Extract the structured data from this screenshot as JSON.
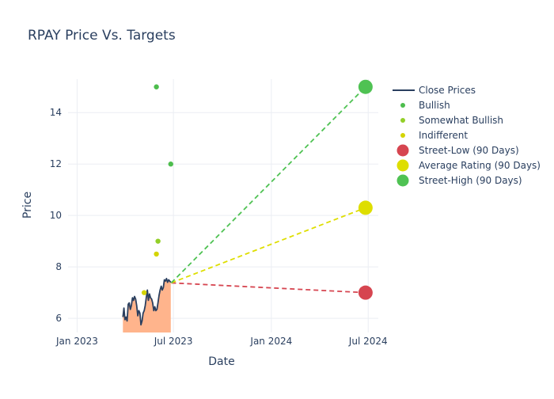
{
  "chart_data": {
    "type": "line",
    "title": "RPAY Price Vs. Targets",
    "xlabel": "Date",
    "ylabel": "Price",
    "xlim": [
      "2022-12-15",
      "2024-07-20"
    ],
    "ylim": [
      5.45,
      15.3
    ],
    "x_ticks": [
      {
        "label": "Jan 2023",
        "date": "2023-01-01"
      },
      {
        "label": "Jul 2023",
        "date": "2023-07-01"
      },
      {
        "label": "Jan 2024",
        "date": "2024-01-01"
      },
      {
        "label": "Jul 2024",
        "date": "2024-07-01"
      }
    ],
    "y_ticks": [
      6,
      8,
      10,
      12,
      14
    ],
    "grid": true,
    "legend_position": "right",
    "colors": {
      "close": "#2a3f5f",
      "fill": "#ffb48c",
      "bullish": "#4dbd4d",
      "somewhat_bullish": "#93cf28",
      "indifferent": "#d4d400",
      "street_low": "#d64550",
      "average": "#dede00",
      "street_high": "#4fc253"
    },
    "series": [
      {
        "name": "Close Prices",
        "kind": "line",
        "x": [
          "2023-03-28",
          "2023-03-30",
          "2023-04-01",
          "2023-04-03",
          "2023-04-05",
          "2023-04-07",
          "2023-04-09",
          "2023-04-11",
          "2023-04-13",
          "2023-04-15",
          "2023-04-17",
          "2023-04-19",
          "2023-04-21",
          "2023-04-23",
          "2023-04-25",
          "2023-04-27",
          "2023-04-29",
          "2023-05-01",
          "2023-05-03",
          "2023-05-05",
          "2023-05-07",
          "2023-05-09",
          "2023-05-11",
          "2023-05-13",
          "2023-05-15",
          "2023-05-17",
          "2023-05-19",
          "2023-05-21",
          "2023-05-23",
          "2023-05-25",
          "2023-05-27",
          "2023-05-29",
          "2023-05-31",
          "2023-06-02",
          "2023-06-04",
          "2023-06-06",
          "2023-06-08",
          "2023-06-10",
          "2023-06-12",
          "2023-06-14",
          "2023-06-16",
          "2023-06-18",
          "2023-06-20",
          "2023-06-22",
          "2023-06-24",
          "2023-06-26"
        ],
        "y": [
          6.05,
          6.4,
          5.95,
          6.05,
          5.9,
          6.55,
          6.6,
          6.35,
          6.5,
          6.8,
          6.7,
          6.85,
          6.75,
          6.5,
          6.1,
          6.3,
          6.2,
          5.75,
          5.9,
          6.2,
          6.3,
          6.5,
          6.8,
          7.1,
          6.7,
          6.95,
          6.8,
          6.75,
          6.6,
          6.3,
          6.45,
          6.3,
          6.35,
          6.6,
          6.9,
          7.1,
          7.25,
          7.1,
          7.2,
          7.5,
          7.45,
          7.55,
          7.4,
          7.5,
          7.45,
          7.4
        ]
      },
      {
        "name": "Bullish",
        "kind": "markers",
        "points": [
          {
            "x": "2023-05-30",
            "y": 15.0
          },
          {
            "x": "2023-06-26",
            "y": 12.0
          }
        ]
      },
      {
        "name": "Somewhat Bullish",
        "kind": "markers",
        "points": [
          {
            "x": "2023-06-02",
            "y": 9.0
          }
        ]
      },
      {
        "name": "Indifferent",
        "kind": "markers",
        "points": [
          {
            "x": "2023-05-07",
            "y": 7.0
          },
          {
            "x": "2023-05-30",
            "y": 8.5
          }
        ]
      },
      {
        "name": "Street-Low (90 Days)",
        "kind": "target",
        "from": {
          "x": "2023-06-27",
          "y": 7.38
        },
        "to": {
          "x": "2024-06-26",
          "y": 7.0
        }
      },
      {
        "name": "Average Rating (90 Days)",
        "kind": "target",
        "from": {
          "x": "2023-06-27",
          "y": 7.38
        },
        "to": {
          "x": "2024-06-26",
          "y": 10.3
        }
      },
      {
        "name": "Street-High (90 Days)",
        "kind": "target",
        "from": {
          "x": "2023-06-27",
          "y": 7.38
        },
        "to": {
          "x": "2024-06-26",
          "y": 15.0
        }
      }
    ]
  }
}
